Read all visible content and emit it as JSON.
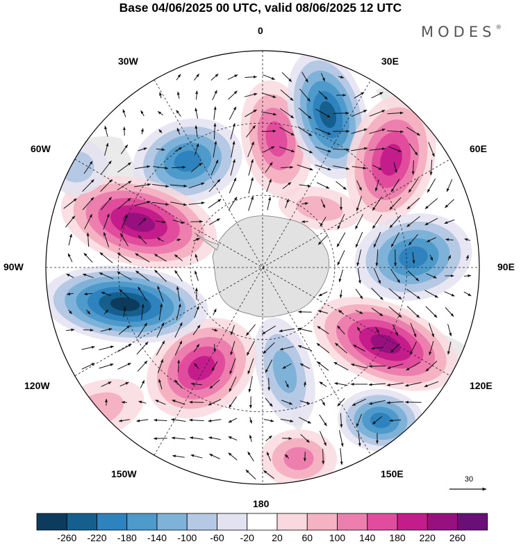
{
  "title": "Base 04/06/2025 00 UTC, valid 08/06/2025 12 UTC",
  "brand": {
    "name": "MODES",
    "mark": "®"
  },
  "longitude_labels": {
    "lon_0": "0",
    "lon_30e": "30E",
    "lon_60e": "60E",
    "lon_90e": "90E",
    "lon_120e": "120E",
    "lon_150e": "150E",
    "lon_180": "180",
    "lon_150w": "150W",
    "lon_120w": "120W",
    "lon_90w": "90W",
    "lon_60w": "60W",
    "lon_30w": "30W"
  },
  "vector_reference": {
    "label": "30"
  },
  "colorbar": {
    "colors": [
      "#0d3b5e",
      "#155f8e",
      "#2e82bd",
      "#4d9acb",
      "#7fb2d9",
      "#b6c9e4",
      "#e3e2f0",
      "#ffffff",
      "#f9d9df",
      "#f4b2c3",
      "#ec7fae",
      "#e14c9c",
      "#c41d8b",
      "#98107f",
      "#6a0e78"
    ],
    "labels": [
      "-260",
      "-220",
      "-180",
      "-140",
      "-100",
      "-60",
      "-20",
      "20",
      "60",
      "100",
      "140",
      "180",
      "220",
      "260"
    ]
  },
  "colors": {
    "land": "#e6e6e6",
    "antarctica": "#e2e2e2",
    "coast": "#777777"
  }
}
